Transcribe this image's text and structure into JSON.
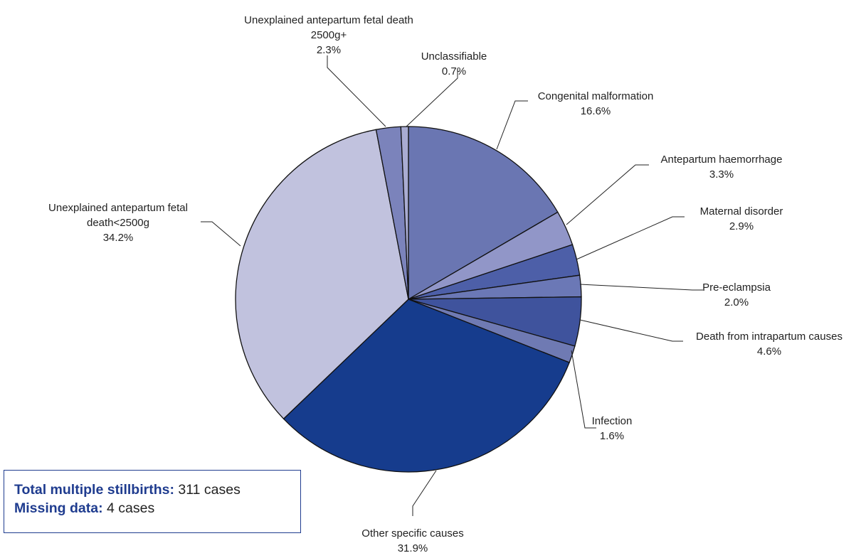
{
  "chart_data": {
    "type": "pie",
    "slices": [
      {
        "label_lines": [
          "Congenital malformation"
        ],
        "value": 16.6,
        "value_label": "16.6%",
        "color": "#6a76b2"
      },
      {
        "label_lines": [
          "Antepartum haemorrhage"
        ],
        "value": 3.3,
        "value_label": "3.3%",
        "color": "#9196c8"
      },
      {
        "label_lines": [
          "Maternal disorder"
        ],
        "value": 2.9,
        "value_label": "2.9%",
        "color": "#4d5fa8"
      },
      {
        "label_lines": [
          "Pre-eclampsia"
        ],
        "value": 2.0,
        "value_label": "2.0%",
        "color": "#6b78b6"
      },
      {
        "label_lines": [
          "Death from intrapartum causes"
        ],
        "value": 4.6,
        "value_label": "4.6%",
        "color": "#3f539d"
      },
      {
        "label_lines": [
          "Infection"
        ],
        "value": 1.6,
        "value_label": "1.6%",
        "color": "#6f7ab3"
      },
      {
        "label_lines": [
          "Other specific causes"
        ],
        "value": 31.9,
        "value_label": "31.9%",
        "color": "#163c8d"
      },
      {
        "label_lines": [
          "Unexplained antepartum fetal",
          "death<2500g"
        ],
        "value": 34.2,
        "value_label": "34.2%",
        "color": "#c1c2de"
      },
      {
        "label_lines": [
          "Unexplained antepartum fetal death",
          "2500g+"
        ],
        "value": 2.3,
        "value_label": "2.3%",
        "color": "#7b83bb"
      },
      {
        "label_lines": [
          "Unclassifiable"
        ],
        "value": 0.7,
        "value_label": "0.7%",
        "color": "#a9acd2"
      }
    ]
  },
  "summary": {
    "total_key": "Total multiple stillbirths:",
    "total_value": " 311 cases",
    "missing_key": "Missing data:",
    "missing_value": " 4 cases"
  }
}
